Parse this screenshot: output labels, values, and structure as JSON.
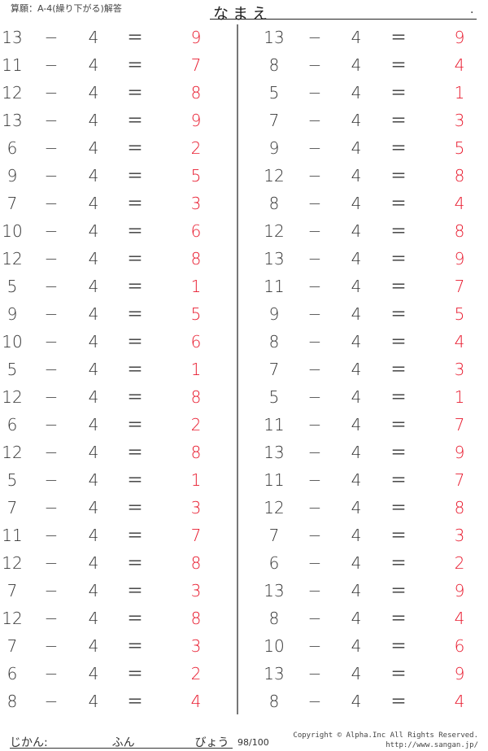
{
  "header": {
    "title": "算願：A-4(繰り下がる)解答",
    "name_label": "なまえ",
    "name_end": "."
  },
  "colors": {
    "answer": "#e8182c",
    "text": "#333333"
  },
  "operator": "−",
  "equals": "＝",
  "left": [
    [
      "13",
      "4",
      "9"
    ],
    [
      "11",
      "4",
      "7"
    ],
    [
      "12",
      "4",
      "8"
    ],
    [
      "13",
      "4",
      "9"
    ],
    [
      "6",
      "4",
      "2"
    ],
    [
      "9",
      "4",
      "5"
    ],
    [
      "7",
      "4",
      "3"
    ],
    [
      "10",
      "4",
      "6"
    ],
    [
      "12",
      "4",
      "8"
    ],
    [
      "5",
      "4",
      "1"
    ],
    [
      "9",
      "4",
      "5"
    ],
    [
      "10",
      "4",
      "6"
    ],
    [
      "5",
      "4",
      "1"
    ],
    [
      "12",
      "4",
      "8"
    ],
    [
      "6",
      "4",
      "2"
    ],
    [
      "12",
      "4",
      "8"
    ],
    [
      "5",
      "4",
      "1"
    ],
    [
      "7",
      "4",
      "3"
    ],
    [
      "11",
      "4",
      "7"
    ],
    [
      "12",
      "4",
      "8"
    ],
    [
      "7",
      "4",
      "3"
    ],
    [
      "12",
      "4",
      "8"
    ],
    [
      "7",
      "4",
      "3"
    ],
    [
      "6",
      "4",
      "2"
    ],
    [
      "8",
      "4",
      "4"
    ]
  ],
  "right": [
    [
      "13",
      "4",
      "9"
    ],
    [
      "8",
      "4",
      "4"
    ],
    [
      "5",
      "4",
      "1"
    ],
    [
      "7",
      "4",
      "3"
    ],
    [
      "9",
      "4",
      "5"
    ],
    [
      "12",
      "4",
      "8"
    ],
    [
      "8",
      "4",
      "4"
    ],
    [
      "12",
      "4",
      "8"
    ],
    [
      "13",
      "4",
      "9"
    ],
    [
      "11",
      "4",
      "7"
    ],
    [
      "9",
      "4",
      "5"
    ],
    [
      "8",
      "4",
      "4"
    ],
    [
      "7",
      "4",
      "3"
    ],
    [
      "5",
      "4",
      "1"
    ],
    [
      "11",
      "4",
      "7"
    ],
    [
      "13",
      "4",
      "9"
    ],
    [
      "11",
      "4",
      "7"
    ],
    [
      "12",
      "4",
      "8"
    ],
    [
      "7",
      "4",
      "3"
    ],
    [
      "6",
      "4",
      "2"
    ],
    [
      "13",
      "4",
      "9"
    ],
    [
      "8",
      "4",
      "4"
    ],
    [
      "10",
      "4",
      "6"
    ],
    [
      "13",
      "4",
      "9"
    ],
    [
      "8",
      "4",
      "4"
    ]
  ],
  "footer": {
    "time_label": "じかん:",
    "minutes_label": "ふん",
    "seconds_label": "びょう",
    "score": "98/100",
    "copyright": "Copyright © Alpha.Inc All Rights Reserved.",
    "url": "http://www.sangan.jp/"
  }
}
